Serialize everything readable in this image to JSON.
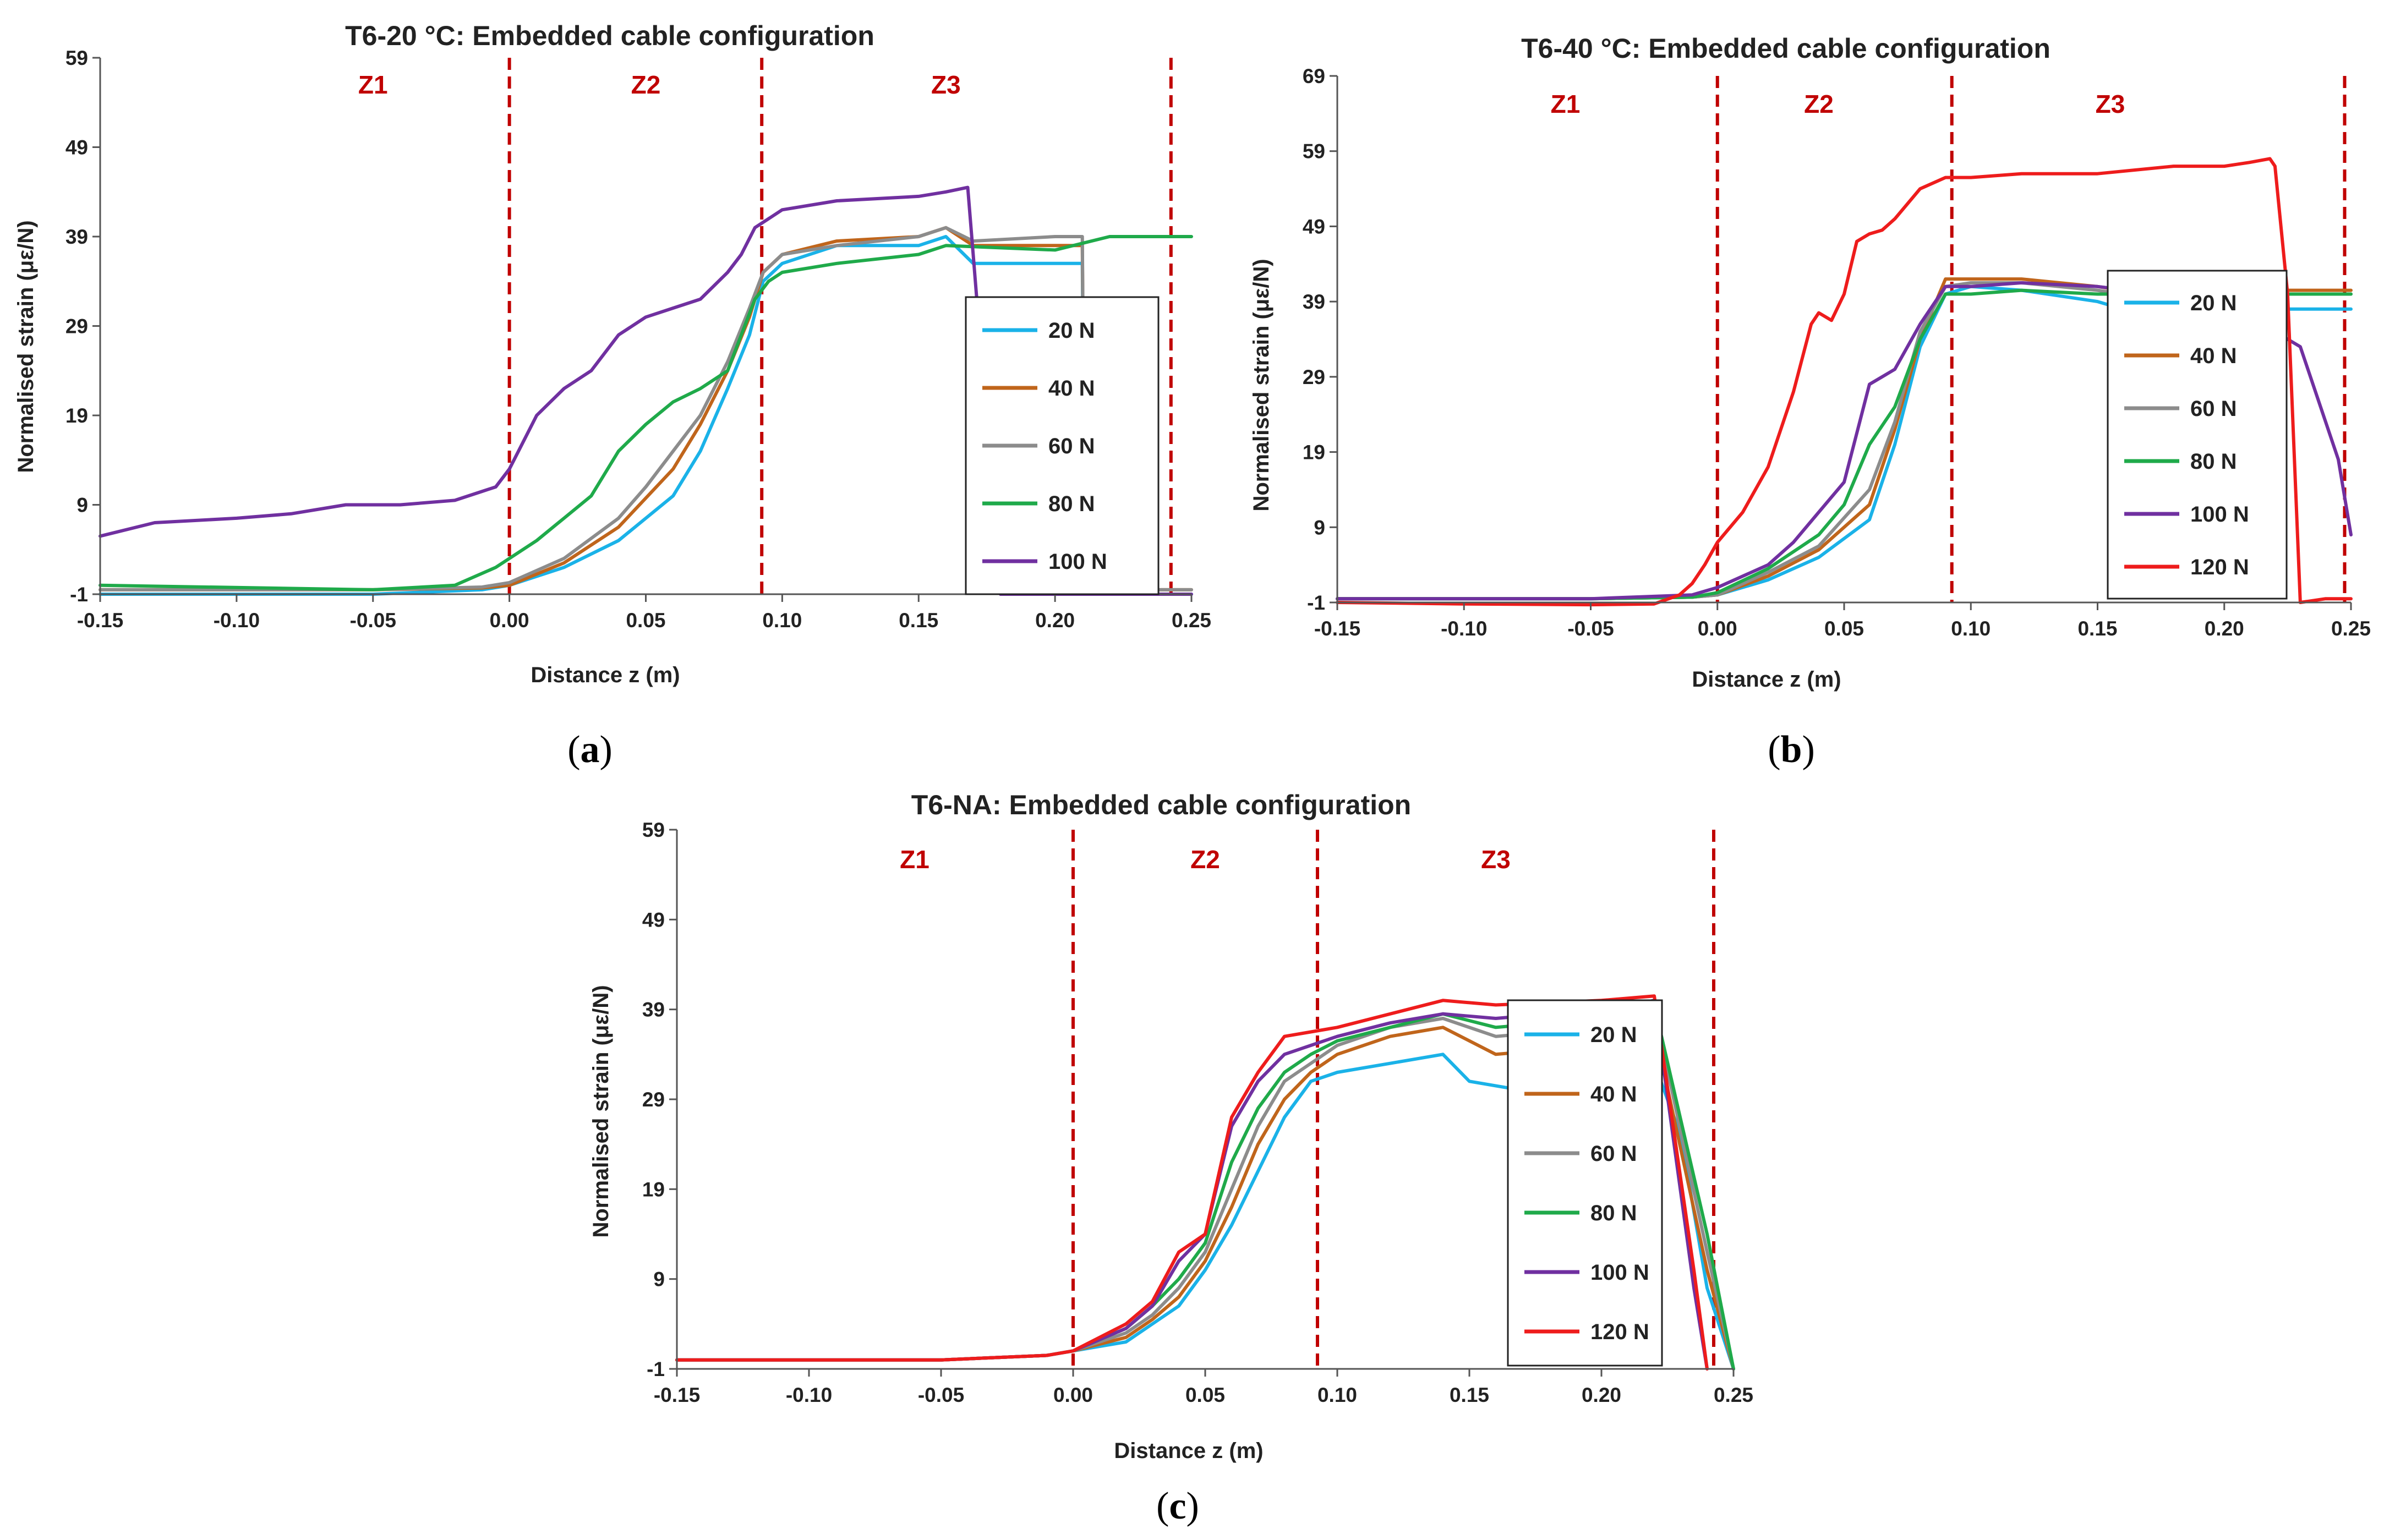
{
  "chart_data": [
    {
      "type": "line",
      "title": "T6-20 °C: Embedded cable configuration",
      "xlabel": "Distance z (m)",
      "ylabel": "Normalised strain (με/N)",
      "xlim": [
        -0.15,
        0.25
      ],
      "ylim": [
        -1,
        59
      ],
      "xticks": [
        "-0.15",
        "-0.10",
        "-0.05",
        "0.00",
        "0.05",
        "0.10",
        "0.15",
        "0.20",
        "0.25"
      ],
      "yticks": [
        "-1",
        "9",
        "19",
        "29",
        "39",
        "49",
        "59"
      ],
      "caption": "a",
      "zones": [
        {
          "label": "Z1",
          "x": -0.05
        },
        {
          "label": "Z2",
          "x": 0.05
        },
        {
          "label": "Z3",
          "x": 0.16
        }
      ],
      "boundaries": [
        0.0,
        0.0925,
        0.2425
      ],
      "series": [
        {
          "name": "20 N",
          "color": "#1ab2e8",
          "x": [
            -0.15,
            -0.05,
            -0.01,
            0.0,
            0.02,
            0.04,
            0.06,
            0.07,
            0.08,
            0.088,
            0.093,
            0.1,
            0.12,
            0.15,
            0.16,
            0.17,
            0.2,
            0.21,
            0.211,
            0.22,
            0.25
          ],
          "y": [
            -1,
            -1,
            -0.5,
            0,
            2,
            5,
            10,
            15,
            22,
            28,
            34,
            36,
            38,
            38,
            39,
            36,
            36,
            36,
            -1,
            -1,
            -1
          ]
        },
        {
          "name": "40 N",
          "color": "#c0651b",
          "x": [
            -0.15,
            -0.05,
            -0.01,
            0.0,
            0.02,
            0.04,
            0.06,
            0.07,
            0.08,
            0.088,
            0.093,
            0.1,
            0.12,
            0.15,
            0.16,
            0.17,
            0.2,
            0.21,
            0.211,
            0.22,
            0.25
          ],
          "y": [
            -0.5,
            -0.5,
            -0.3,
            0,
            2.5,
            6.5,
            13,
            18,
            24,
            30,
            35,
            37,
            38.5,
            39,
            40,
            38,
            38,
            38,
            -0.5,
            -0.5,
            -0.5
          ]
        },
        {
          "name": "60 N",
          "color": "#8c8c8c",
          "x": [
            -0.15,
            -0.05,
            -0.01,
            0.0,
            0.02,
            0.04,
            0.05,
            0.06,
            0.07,
            0.08,
            0.088,
            0.093,
            0.1,
            0.12,
            0.15,
            0.16,
            0.17,
            0.2,
            0.21,
            0.211,
            0.22,
            0.25
          ],
          "y": [
            -0.5,
            -0.5,
            -0.2,
            0.3,
            3,
            7.5,
            11,
            15,
            19,
            25,
            31,
            35,
            37,
            38,
            39,
            40,
            38.5,
            39,
            39,
            -0.5,
            -0.5,
            -0.5
          ]
        },
        {
          "name": "80 N",
          "color": "#1faa4a",
          "x": [
            -0.15,
            -0.05,
            -0.02,
            -0.005,
            0.0,
            0.01,
            0.02,
            0.03,
            0.04,
            0.05,
            0.06,
            0.07,
            0.08,
            0.085,
            0.09,
            0.095,
            0.1,
            0.12,
            0.15,
            0.16,
            0.2,
            0.22,
            0.25
          ],
          "y": [
            0,
            -0.5,
            0,
            2,
            3,
            5,
            7.5,
            10,
            15,
            18,
            20.5,
            22,
            24,
            28,
            32,
            34,
            35,
            36,
            37,
            38,
            37.5,
            39,
            39
          ]
        },
        {
          "name": "100 N",
          "color": "#7030a0",
          "x": [
            -0.15,
            -0.13,
            -0.1,
            -0.08,
            -0.06,
            -0.04,
            -0.02,
            -0.01,
            -0.005,
            0.0,
            0.01,
            0.02,
            0.03,
            0.04,
            0.05,
            0.06,
            0.07,
            0.08,
            0.085,
            0.09,
            0.1,
            0.12,
            0.15,
            0.16,
            0.168,
            0.17,
            0.18,
            0.25
          ],
          "y": [
            5.5,
            7,
            7.5,
            8,
            9,
            9,
            9.5,
            10.5,
            11,
            13,
            19,
            22,
            24,
            28,
            30,
            31,
            32,
            35,
            37,
            40,
            42,
            43,
            43.5,
            44,
            44.5,
            37,
            -1,
            -1
          ]
        }
      ]
    },
    {
      "type": "line",
      "title": "T6-40 °C: Embedded cable configuration",
      "xlabel": "Distance z (m)",
      "ylabel": "Normalised strain (με/N)",
      "xlim": [
        -0.15,
        0.25
      ],
      "ylim": [
        -1,
        69
      ],
      "xticks": [
        "-0.15",
        "-0.10",
        "-0.05",
        "0.00",
        "0.05",
        "0.10",
        "0.15",
        "0.20",
        "0.25"
      ],
      "yticks": [
        "-1",
        "9",
        "19",
        "29",
        "39",
        "49",
        "59",
        "69"
      ],
      "caption": "b",
      "zones": [
        {
          "label": "Z1",
          "x": -0.06
        },
        {
          "label": "Z2",
          "x": 0.04
        },
        {
          "label": "Z3",
          "x": 0.155
        }
      ],
      "boundaries": [
        0.0,
        0.0925,
        0.2475
      ],
      "series": [
        {
          "name": "20 N",
          "color": "#1ab2e8",
          "x": [
            -0.15,
            -0.05,
            -0.01,
            0.0,
            0.02,
            0.04,
            0.06,
            0.07,
            0.08,
            0.09,
            0.1,
            0.12,
            0.15,
            0.16,
            0.25
          ],
          "y": [
            -0.5,
            -0.5,
            -0.3,
            0,
            2,
            5,
            10,
            20,
            33,
            40,
            41,
            40.5,
            39,
            38,
            38
          ]
        },
        {
          "name": "40 N",
          "color": "#c0651b",
          "x": [
            -0.15,
            -0.05,
            -0.01,
            0.0,
            0.02,
            0.04,
            0.06,
            0.07,
            0.08,
            0.09,
            0.1,
            0.12,
            0.15,
            0.16,
            0.25
          ],
          "y": [
            -0.5,
            -0.5,
            -0.3,
            0,
            2.5,
            6,
            12,
            22,
            34,
            42,
            42,
            42,
            41,
            40.5,
            40.5
          ]
        },
        {
          "name": "60 N",
          "color": "#8c8c8c",
          "x": [
            -0.15,
            -0.05,
            -0.01,
            0.0,
            0.02,
            0.04,
            0.06,
            0.07,
            0.08,
            0.09,
            0.1,
            0.12,
            0.15,
            0.16,
            0.25
          ],
          "y": [
            -0.5,
            -0.5,
            -0.3,
            0,
            3,
            6.5,
            14,
            23,
            35,
            41,
            41.5,
            41.5,
            40.5,
            40,
            40
          ]
        },
        {
          "name": "80 N",
          "color": "#1faa4a",
          "x": [
            -0.15,
            -0.05,
            -0.01,
            0.0,
            0.02,
            0.04,
            0.05,
            0.06,
            0.07,
            0.08,
            0.09,
            0.1,
            0.12,
            0.15,
            0.16,
            0.25
          ],
          "y": [
            -0.5,
            -0.5,
            -0.3,
            0.3,
            3.5,
            8,
            12,
            20,
            25,
            34,
            40,
            40,
            40.5,
            40,
            40,
            40
          ]
        },
        {
          "name": "100 N",
          "color": "#7030a0",
          "x": [
            -0.15,
            -0.05,
            -0.01,
            0.0,
            0.02,
            0.03,
            0.04,
            0.05,
            0.06,
            0.07,
            0.08,
            0.09,
            0.1,
            0.12,
            0.15,
            0.2,
            0.23,
            0.245,
            0.25
          ],
          "y": [
            -0.5,
            -0.5,
            0,
            1,
            4,
            7,
            11,
            15,
            28,
            30,
            36,
            41,
            41,
            41.5,
            41,
            39,
            33,
            18,
            8
          ]
        },
        {
          "name": "120 N",
          "color": "#ee1c1c",
          "x": [
            -0.15,
            -0.1,
            -0.05,
            -0.025,
            -0.015,
            -0.01,
            -0.005,
            0.0,
            0.01,
            0.02,
            0.03,
            0.037,
            0.04,
            0.045,
            0.05,
            0.055,
            0.06,
            0.065,
            0.07,
            0.08,
            0.09,
            0.095,
            0.1,
            0.12,
            0.15,
            0.18,
            0.2,
            0.21,
            0.218,
            0.22,
            0.225,
            0.23,
            0.24,
            0.25
          ],
          "y": [
            -1,
            -1.2,
            -1.3,
            -1.2,
            0,
            1.5,
            4,
            7,
            11,
            17,
            27,
            36,
            37.5,
            36.5,
            40,
            47,
            48,
            48.5,
            50,
            54,
            55.5,
            55.5,
            55.5,
            56,
            56,
            57,
            57,
            57.5,
            58,
            57,
            40,
            -1,
            -0.5,
            -0.5
          ]
        }
      ]
    },
    {
      "type": "line",
      "title": "T6-NA: Embedded cable configuration",
      "xlabel": "Distance z (m)",
      "ylabel": "Normalised strain (με/N)",
      "xlim": [
        -0.15,
        0.25
      ],
      "ylim": [
        -1,
        59
      ],
      "xticks": [
        "-0.15",
        "-0.10",
        "-0.05",
        "0.00",
        "0.05",
        "0.10",
        "0.15",
        "0.20",
        "0.25"
      ],
      "yticks": [
        "-1",
        "9",
        "19",
        "29",
        "39",
        "49",
        "59"
      ],
      "caption": "c",
      "zones": [
        {
          "label": "Z1",
          "x": -0.06
        },
        {
          "label": "Z2",
          "x": 0.05
        },
        {
          "label": "Z3",
          "x": 0.16
        }
      ],
      "boundaries": [
        0.0,
        0.0925,
        0.2425
      ],
      "series": [
        {
          "name": "20 N",
          "color": "#1ab2e8",
          "x": [
            -0.15,
            -0.05,
            -0.01,
            0.0,
            0.02,
            0.03,
            0.04,
            0.05,
            0.06,
            0.07,
            0.08,
            0.09,
            0.1,
            0.12,
            0.14,
            0.15,
            0.17,
            0.2,
            0.22,
            0.23,
            0.24,
            0.25
          ],
          "y": [
            0,
            0,
            0.5,
            1,
            2,
            4,
            6,
            10,
            15,
            21,
            27,
            31,
            32,
            33,
            34,
            31,
            30,
            32,
            33,
            25,
            8,
            -1
          ]
        },
        {
          "name": "40 N",
          "color": "#c0651b",
          "x": [
            -0.15,
            -0.05,
            -0.01,
            0.0,
            0.02,
            0.03,
            0.04,
            0.05,
            0.06,
            0.07,
            0.08,
            0.09,
            0.1,
            0.12,
            0.14,
            0.16,
            0.2,
            0.22,
            0.24,
            0.25
          ],
          "y": [
            0,
            0,
            0.5,
            1,
            2.5,
            4.5,
            7,
            11,
            17,
            24,
            29,
            32,
            34,
            36,
            37,
            34,
            35,
            37,
            10,
            -1
          ]
        },
        {
          "name": "60 N",
          "color": "#8c8c8c",
          "x": [
            -0.15,
            -0.05,
            -0.01,
            0.0,
            0.02,
            0.03,
            0.04,
            0.05,
            0.06,
            0.07,
            0.08,
            0.09,
            0.1,
            0.12,
            0.14,
            0.16,
            0.2,
            0.22,
            0.24,
            0.25
          ],
          "y": [
            0,
            0,
            0.5,
            1,
            3,
            5,
            8,
            12,
            19,
            26,
            31,
            33,
            35,
            37,
            38,
            36,
            37,
            39,
            12,
            -1
          ]
        },
        {
          "name": "80 N",
          "color": "#1faa4a",
          "x": [
            -0.15,
            -0.05,
            -0.01,
            0.0,
            0.02,
            0.03,
            0.04,
            0.05,
            0.06,
            0.07,
            0.08,
            0.09,
            0.1,
            0.12,
            0.14,
            0.16,
            0.2,
            0.22,
            0.24,
            0.25
          ],
          "y": [
            0,
            0,
            0.5,
            1,
            3.5,
            6,
            9,
            13,
            22,
            28,
            32,
            34,
            35.5,
            37,
            38.5,
            37,
            38,
            39.5,
            14,
            -1
          ]
        },
        {
          "name": "100 N",
          "color": "#7030a0",
          "x": [
            -0.15,
            -0.05,
            -0.01,
            0.0,
            0.02,
            0.03,
            0.04,
            0.05,
            0.06,
            0.07,
            0.08,
            0.09,
            0.1,
            0.12,
            0.14,
            0.16,
            0.2,
            0.22,
            0.235,
            0.24
          ],
          "y": [
            0,
            0,
            0.5,
            1,
            3.5,
            6,
            11,
            14,
            26,
            31,
            34,
            35,
            36,
            37.5,
            38.5,
            38,
            39,
            40,
            8,
            -1
          ]
        },
        {
          "name": "120 N",
          "color": "#ee1c1c",
          "x": [
            -0.15,
            -0.05,
            -0.01,
            0.0,
            0.02,
            0.03,
            0.04,
            0.05,
            0.06,
            0.07,
            0.08,
            0.09,
            0.1,
            0.12,
            0.14,
            0.16,
            0.2,
            0.22,
            0.235,
            0.24
          ],
          "y": [
            0,
            0,
            0.5,
            1,
            4,
            6.5,
            12,
            14,
            27,
            32,
            36,
            36.5,
            37,
            38.5,
            40,
            39.5,
            40,
            40.5,
            10,
            -1
          ]
        }
      ]
    }
  ]
}
